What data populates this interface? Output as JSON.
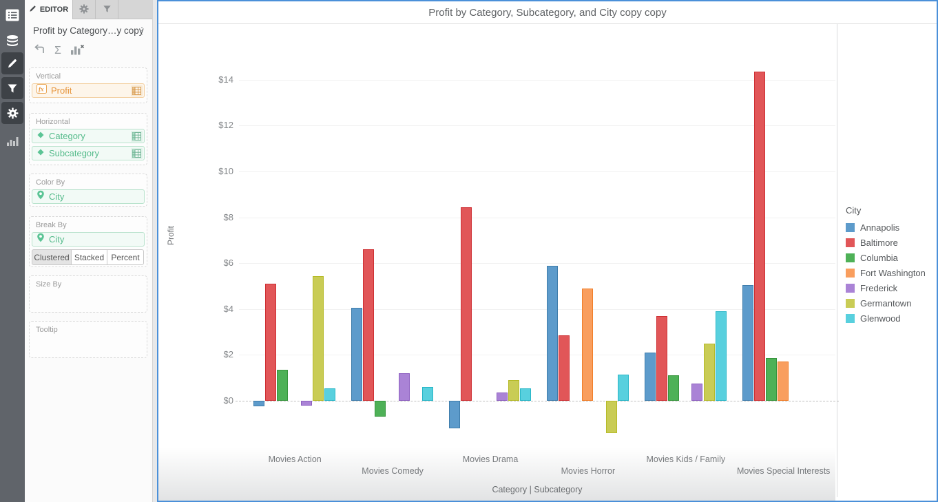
{
  "left_rail": {
    "icons": [
      "list-icon",
      "database-icon",
      "pencil-icon",
      "filter-icon",
      "gear-icon",
      "bar-chart-icon"
    ]
  },
  "editor": {
    "tab_label": "EDITOR",
    "widget_title": "Profit by Category…y copy",
    "sections": {
      "vertical": {
        "label": "Vertical",
        "field": "Profit"
      },
      "horizontal": {
        "label": "Horizontal",
        "fields": [
          "Category",
          "Subcategory"
        ]
      },
      "color_by": {
        "label": "Color By",
        "field": "City"
      },
      "break_by": {
        "label": "Break By",
        "field": "City",
        "modes": [
          "Clustered",
          "Stacked",
          "Percent"
        ],
        "active_mode": "Clustered"
      },
      "size_by": {
        "label": "Size By"
      },
      "tooltip": {
        "label": "Tooltip"
      }
    }
  },
  "chart_data": {
    "type": "bar",
    "title": "Profit by Category, Subcategory, and City copy copy",
    "ylabel": "Profit",
    "xlabel": "Category  |  Subcategory",
    "legend_title": "City",
    "legend_position": "right",
    "grid": true,
    "zero_line": "dashed",
    "ylim": [
      -2,
      15.7
    ],
    "ytick_prefix": "$",
    "yticks": [
      0,
      2,
      4,
      6,
      8,
      10,
      12,
      14
    ],
    "categories": [
      "Movies Action",
      "Movies Comedy",
      "Movies Drama",
      "Movies Horror",
      "Movies Kids / Family",
      "Movies Special Interests"
    ],
    "series": [
      {
        "name": "Annapolis",
        "color": "#5d9bcb",
        "border": "#3e7cab",
        "values": [
          -0.25,
          4.05,
          -1.2,
          5.9,
          2.1,
          5.05
        ]
      },
      {
        "name": "Baltimore",
        "color": "#e15658",
        "border": "#ce2f33",
        "values": [
          5.1,
          6.6,
          8.45,
          2.85,
          3.7,
          14.35
        ]
      },
      {
        "name": "Columbia",
        "color": "#4eb157",
        "border": "#36953c",
        "values": [
          1.35,
          -0.7,
          null,
          null,
          1.1,
          1.85
        ]
      },
      {
        "name": "Fort Washington",
        "color": "#f99e5e",
        "border": "#f17d27",
        "values": [
          null,
          null,
          null,
          4.9,
          null,
          1.7
        ]
      },
      {
        "name": "Frederick",
        "color": "#aa83d6",
        "border": "#8d5fc0",
        "values": [
          -0.2,
          1.2,
          0.35,
          null,
          0.75,
          null
        ]
      },
      {
        "name": "Germantown",
        "color": "#c9cc55",
        "border": "#b5ba27",
        "values": [
          5.45,
          null,
          0.9,
          -1.4,
          2.5,
          null
        ]
      },
      {
        "name": "Glenwood",
        "color": "#58d0de",
        "border": "#27b6c7",
        "values": [
          0.55,
          0.6,
          0.55,
          1.15,
          3.9,
          null
        ]
      }
    ]
  }
}
